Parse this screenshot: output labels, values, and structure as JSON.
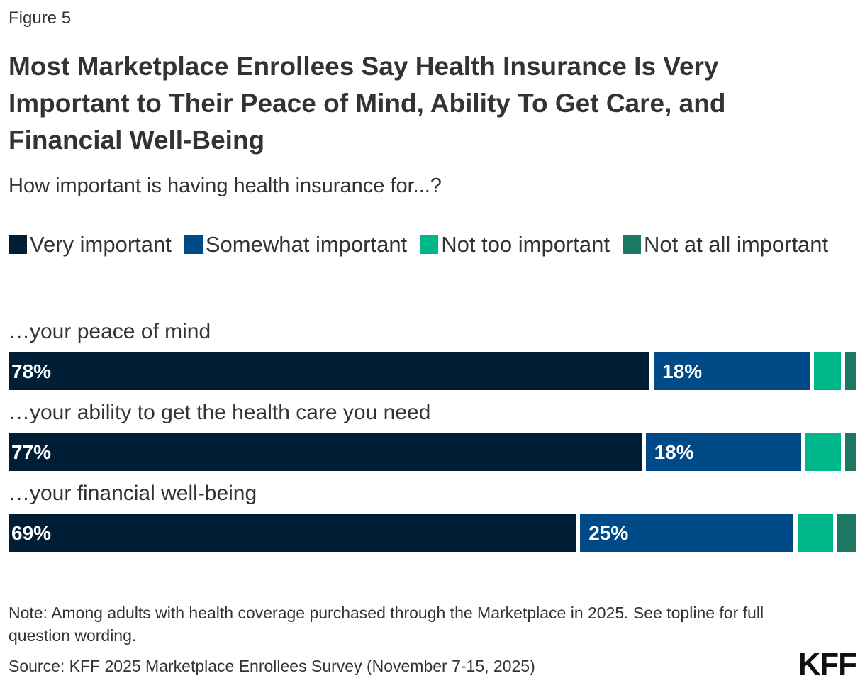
{
  "figure_label": "Figure 5",
  "chart_data": {
    "type": "bar",
    "orientation": "horizontal-stacked-100",
    "title": "Most Marketplace Enrollees Say Health Insurance Is Very Important to Their Peace of Mind, Ability To Get Care, and Financial Well-Being",
    "subtitle": "How important is having health insurance for...?",
    "categories": [
      "…your peace of mind",
      "…your ability to get the health care you need",
      "…your financial well-being"
    ],
    "series": [
      {
        "name": "Very important",
        "color": "#011e37",
        "values": [
          78,
          77,
          69
        ]
      },
      {
        "name": "Somewhat important",
        "color": "#004a87",
        "values": [
          18,
          18,
          25
        ]
      },
      {
        "name": "Not too important",
        "color": "#00b68b",
        "values": [
          3,
          4,
          4
        ]
      },
      {
        "name": "Not at all important",
        "color": "#1c7763",
        "values": [
          1,
          1,
          2
        ]
      }
    ],
    "value_labels": [
      [
        "78%",
        "18%"
      ],
      [
        "77%",
        "18%"
      ],
      [
        "69%",
        "25%"
      ]
    ],
    "xlim": [
      0,
      100
    ],
    "legend_position": "top"
  },
  "note": "Note: Among adults with health coverage purchased through the Marketplace in 2025. See topline for full question wording.",
  "source": "Source: KFF 2025 Marketplace Enrollees Survey (November 7-15, 2025)",
  "logo": "KFF"
}
